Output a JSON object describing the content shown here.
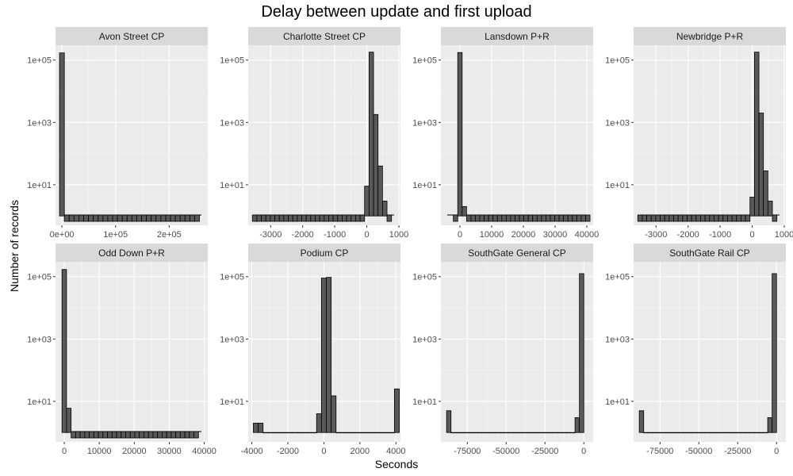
{
  "title": "Delay between update and first upload",
  "xlabel": "Seconds",
  "ylabel": "Number of records",
  "chart_data": [
    {
      "type": "bar",
      "scale_y": "log10",
      "facet": "Avon Street CP",
      "xlim": [
        -12000,
        272000
      ],
      "ylim": [
        0.5,
        300000
      ],
      "xticks": [
        0,
        100000,
        200000
      ],
      "xtick_labels": [
        "0e+00",
        "1e+05",
        "2e+05"
      ],
      "yticks": [
        10,
        1000,
        100000
      ],
      "ytick_labels": [
        "1e+01",
        "1e+03",
        "1e+05"
      ],
      "bin_width": 9000,
      "bin_start": -4500,
      "counts": [
        170000,
        0.3,
        0.3,
        0.3,
        0.3,
        0.3,
        0.3,
        0.3,
        0.3,
        0.3,
        0.3,
        0.3,
        0.3,
        0.3,
        0.3,
        0.3,
        0.3,
        0.3,
        0.3,
        0.3,
        0.3,
        0.3,
        0.3,
        0.3,
        0.3,
        0.3,
        0.3,
        0.3,
        0.3
      ],
      "baseline_tick": true
    },
    {
      "type": "bar",
      "scale_y": "log10",
      "facet": "Charlotte Street CP",
      "xlim": [
        -3700,
        1050
      ],
      "ylim": [
        0.5,
        300000
      ],
      "xticks": [
        -3000,
        -2000,
        -1000,
        0,
        1000
      ],
      "xtick_labels": [
        "-3000",
        "-2000",
        "-1000",
        "0",
        "1000"
      ],
      "yticks": [
        10,
        1000,
        100000
      ],
      "ytick_labels": [
        "1e+01",
        "1e+03",
        "1e+05"
      ],
      "bin_width": 140,
      "bin_start": -3570,
      "counts": [
        0.3,
        0.3,
        0.3,
        0.3,
        0.3,
        0.3,
        0.3,
        0.3,
        0.3,
        0.3,
        0.3,
        0.3,
        0.3,
        0.3,
        0.3,
        0.3,
        0.3,
        0.3,
        0.3,
        0.3,
        0.3,
        0.3,
        0.3,
        0.3,
        0.3,
        9,
        180000,
        1800,
        40,
        3,
        0.3
      ],
      "baseline_tick": true
    },
    {
      "type": "bar",
      "scale_y": "log10",
      "facet": "Lansdown P+R",
      "xlim": [
        -6000,
        42000
      ],
      "ylim": [
        0.5,
        300000
      ],
      "xticks": [
        0,
        10000,
        20000,
        30000,
        40000
      ],
      "xtick_labels": [
        "0",
        "10000",
        "20000",
        "30000",
        "40000"
      ],
      "yticks": [
        10,
        1000,
        100000
      ],
      "ytick_labels": [
        "1e+01",
        "1e+03",
        "1e+05"
      ],
      "bin_width": 1390,
      "bin_start": -2085,
      "counts": [
        0.3,
        175000,
        2,
        0.3,
        0.3,
        0.3,
        0.3,
        0.3,
        0.3,
        0.3,
        0.3,
        0.3,
        0.3,
        0.3,
        0.3,
        0.3,
        0.3,
        0.3,
        0.3,
        0.3,
        0.3,
        0.3,
        0.3,
        0.3,
        0.3,
        0.3,
        0.3,
        0.3,
        0.3,
        0.3,
        0.3
      ],
      "baseline_tick": true
    },
    {
      "type": "bar",
      "scale_y": "log10",
      "facet": "Newbridge P+R",
      "xlim": [
        -3700,
        1050
      ],
      "ylim": [
        0.5,
        300000
      ],
      "xticks": [
        -3000,
        -2000,
        -1000,
        0,
        1000
      ],
      "xtick_labels": [
        "-3000",
        "-2000",
        "-1000",
        "0",
        "1000"
      ],
      "yticks": [
        10,
        1000,
        100000
      ],
      "ytick_labels": [
        "1e+01",
        "1e+03",
        "1e+05"
      ],
      "bin_width": 140,
      "bin_start": -3570,
      "counts": [
        0.3,
        0.3,
        0.3,
        0.3,
        0.3,
        0.3,
        0.3,
        0.3,
        0.3,
        0.3,
        0.3,
        0.3,
        0.3,
        0.3,
        0.3,
        0.3,
        0.3,
        0.3,
        0.3,
        0.3,
        0.3,
        0.3,
        0.3,
        0.3,
        0.3,
        4,
        180000,
        2000,
        28,
        3,
        0.3
      ],
      "baseline_tick": true
    },
    {
      "type": "bar",
      "scale_y": "log10",
      "facet": "Odd Down P+R",
      "xlim": [
        -2500,
        41000
      ],
      "ylim": [
        0.5,
        300000
      ],
      "xticks": [
        0,
        10000,
        20000,
        30000,
        40000
      ],
      "xtick_labels": [
        "0",
        "10000",
        "20000",
        "30000",
        "40000"
      ],
      "yticks": [
        10,
        1000,
        100000
      ],
      "ytick_labels": [
        "1e+01",
        "1e+03",
        "1e+05"
      ],
      "bin_width": 1300,
      "bin_start": -650,
      "counts": [
        170000,
        6,
        0.3,
        0.3,
        0.3,
        0.3,
        0.3,
        0.3,
        0.3,
        0.3,
        0.3,
        0.3,
        0.3,
        0.3,
        0.3,
        0.3,
        0.3,
        0.3,
        0.3,
        0.3,
        0.3,
        0.3,
        0.3,
        0.3,
        0.3,
        0.3,
        0.3,
        0.3,
        0.3,
        0.3
      ],
      "baseline_tick": true
    },
    {
      "type": "bar",
      "scale_y": "log10",
      "facet": "Podium CP",
      "xlim": [
        -4200,
        4250
      ],
      "ylim": [
        0.5,
        300000
      ],
      "xticks": [
        -4000,
        -2000,
        0,
        2000,
        4000
      ],
      "xtick_labels": [
        "-4000",
        "-2000",
        "0",
        "2000",
        "4000"
      ],
      "yticks": [
        10,
        1000,
        100000
      ],
      "ytick_labels": [
        "1e+01",
        "1e+03",
        "1e+05"
      ],
      "bin_width": 270,
      "bin_start": -3915,
      "counts": [
        2,
        2,
        1,
        1,
        1,
        1,
        1,
        1,
        1,
        1,
        1,
        1,
        1,
        4,
        90000,
        95000,
        15,
        1,
        1,
        1,
        1,
        1,
        1,
        1,
        1,
        1,
        1,
        1,
        1,
        25
      ],
      "baseline_tick": false
    },
    {
      "type": "bar",
      "scale_y": "log10",
      "facet": "SouthGate General CP",
      "xlim": [
        -92000,
        6000
      ],
      "ylim": [
        0.5,
        300000
      ],
      "xticks": [
        -75000,
        -50000,
        -25000,
        0
      ],
      "xtick_labels": [
        "-75000",
        "-50000",
        "-25000",
        "0"
      ],
      "yticks": [
        10,
        1000,
        100000
      ],
      "ytick_labels": [
        "1e+01",
        "1e+03",
        "1e+05"
      ],
      "bin_width": 2850,
      "bin_start": -88350,
      "counts": [
        5,
        1,
        1,
        1,
        1,
        1,
        1,
        1,
        1,
        1,
        1,
        1,
        1,
        1,
        1,
        1,
        1,
        1,
        1,
        1,
        1,
        1,
        1,
        1,
        1,
        1,
        1,
        1,
        1,
        3,
        125000
      ],
      "baseline_tick": false
    },
    {
      "type": "bar",
      "scale_y": "log10",
      "facet": "SouthGate Rail CP",
      "xlim": [
        -92000,
        6000
      ],
      "ylim": [
        0.5,
        300000
      ],
      "xticks": [
        -75000,
        -50000,
        -25000,
        0
      ],
      "xtick_labels": [
        "-75000",
        "-50000",
        "-25000",
        "0"
      ],
      "yticks": [
        10,
        1000,
        100000
      ],
      "ytick_labels": [
        "1e+01",
        "1e+03",
        "1e+05"
      ],
      "bin_width": 2850,
      "bin_start": -88350,
      "counts": [
        5,
        1,
        1,
        1,
        1,
        1,
        1,
        1,
        1,
        1,
        1,
        1,
        1,
        1,
        1,
        1,
        1,
        1,
        1,
        1,
        1,
        1,
        1,
        1,
        1,
        1,
        1,
        1,
        1,
        3,
        125000
      ],
      "baseline_tick": false
    }
  ]
}
